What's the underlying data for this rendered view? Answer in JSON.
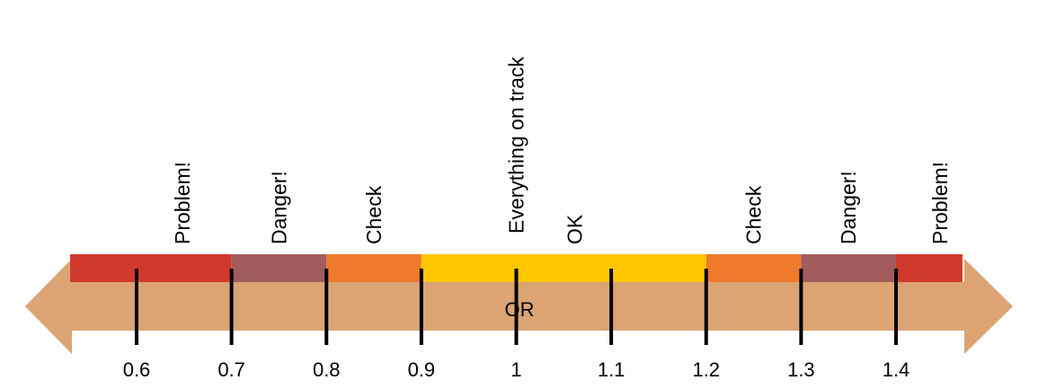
{
  "colors": {
    "arrow": "#dba472",
    "problem": "#d0392b",
    "danger": "#a35c5e",
    "check": "#ef7a2b",
    "ok": "#ffc600",
    "tick": "#000000"
  },
  "axis": {
    "label": "OR",
    "ticks": [
      "0.6",
      "0.7",
      "0.8",
      "0.9",
      "1",
      "1.1",
      "1.2",
      "1.3",
      "1.4"
    ]
  },
  "zones": [
    {
      "from": 0.53,
      "to": 0.7,
      "color_key": "problem",
      "label": "Problem!"
    },
    {
      "from": 0.7,
      "to": 0.8,
      "color_key": "danger",
      "label": "Danger!"
    },
    {
      "from": 0.8,
      "to": 0.9,
      "color_key": "check",
      "label": "Check"
    },
    {
      "from": 0.9,
      "to": 1.2,
      "color_key": "ok",
      "label": "OK",
      "extra_label": "Everything on track"
    },
    {
      "from": 1.2,
      "to": 1.3,
      "color_key": "check",
      "label": "Check"
    },
    {
      "from": 1.3,
      "to": 1.4,
      "color_key": "danger",
      "label": "Danger!"
    },
    {
      "from": 1.4,
      "to": 1.47,
      "color_key": "problem",
      "label": "Problem!"
    }
  ]
}
